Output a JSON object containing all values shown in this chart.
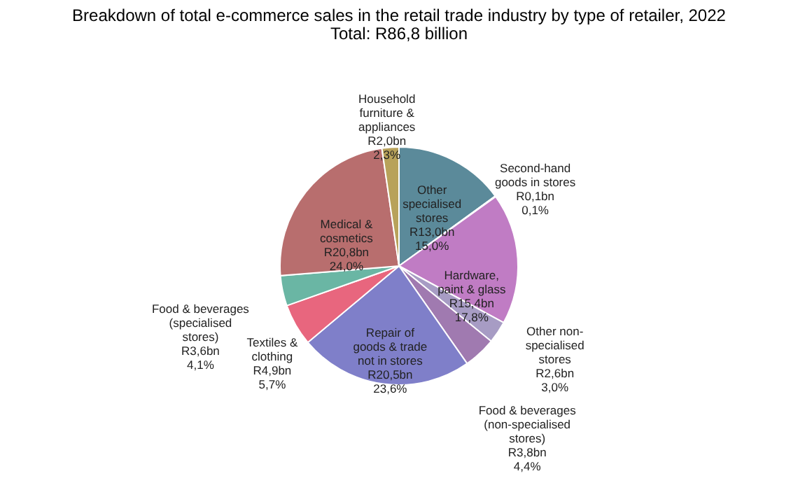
{
  "chart_data": {
    "type": "pie",
    "title": "Breakdown of total e-commerce sales in the retail trade industry by type of retailer, 2022",
    "subtitle": "Total: R86,8 billion",
    "categories": [
      "Other specialised stores",
      "Second-hand goods in stores",
      "Hardware, paint & glass",
      "Other non-specialised stores",
      "Food & beverages (non-specialised stores)",
      "Repair of goods & trade not in stores",
      "Textiles & clothing",
      "Food & beverages (specialised stores)",
      "Medical & cosmetics",
      "Household furniture & appliances"
    ],
    "values": [
      15.0,
      0.1,
      17.8,
      3.0,
      4.4,
      23.6,
      5.7,
      4.1,
      24.0,
      2.3
    ],
    "value_labels": [
      "R13,0bn 15,0%",
      "R0,1bn 0,1%",
      "R15,4bn 17,8%",
      "R2,6bn 3,0%",
      "R3,8bn 4,4%",
      "R20,5bn 23,6%",
      "R4,9bn 5,7%",
      "R3,6bn 4,1%",
      "R20,8bn 24,0%",
      "R2,0bn 2,3%"
    ],
    "colors": [
      "#5b8a9a",
      "#a59ac8",
      "#c07cc4",
      "#a79cc4",
      "#a07ab0",
      "#7f7fc9",
      "#e8667e",
      "#6ab6a4",
      "#b86e6e",
      "#b8a25a"
    ],
    "legend": false
  }
}
